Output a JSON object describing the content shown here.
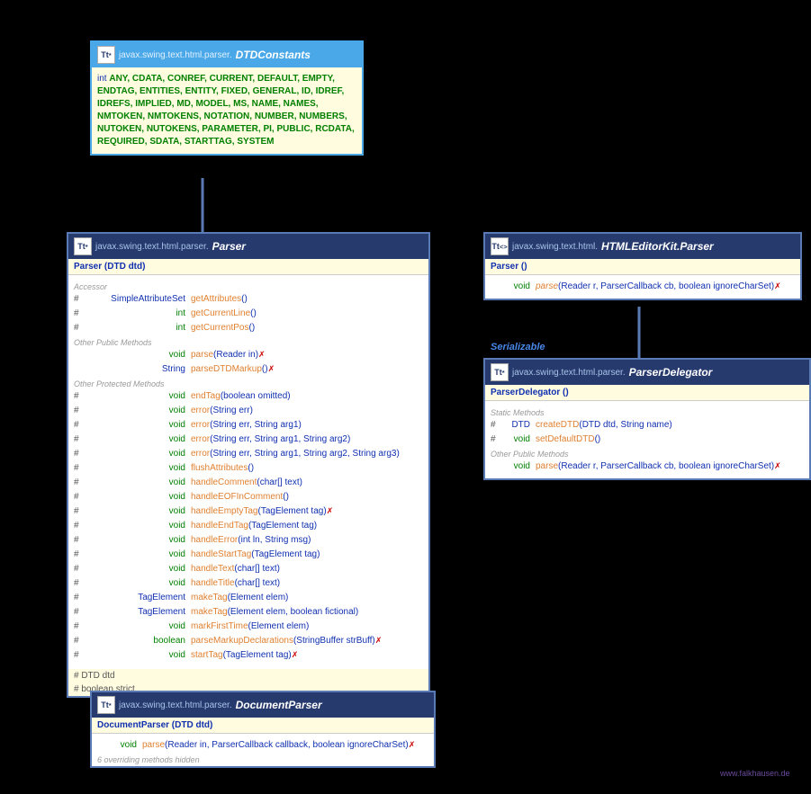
{
  "watermark": "www.falkhausen.de",
  "link_color": "#5a7ab5",
  "dtd": {
    "pkg": "javax.swing.text.html.parser.",
    "name": "DTDConstants",
    "constants_prefix": "int ",
    "constants": "ANY, CDATA, CONREF, CURRENT, DEFAULT, EMPTY, ENDTAG, ENTITIES, ENTITY, FIXED, GENERAL, ID, IDREF, IDREFS, IMPLIED, MD, MODEL, MS, NAME, NAMES, NMTOKEN, NMTOKENS, NOTATION, NUMBER, NUMBERS, NUTOKEN, NUTOKENS, PARAMETER, PI, PUBLIC, RCDATA, REQUIRED, SDATA, STARTTAG, SYSTEM"
  },
  "parser": {
    "pkg": "javax.swing.text.html.parser.",
    "name": "Parser",
    "ctor": "Parser (DTD dtd)",
    "sec1": "Accessor",
    "rows1": [
      {
        "m": "#",
        "t": "SimpleAttributeSet",
        "tc": "r-cls",
        "n": "getAttributes",
        "a": " ()"
      },
      {
        "m": "#",
        "t": "int",
        "tc": "r-prim",
        "n": "getCurrentLine",
        "a": " ()"
      },
      {
        "m": "#",
        "t": "int",
        "tc": "r-prim",
        "n": "getCurrentPos",
        "a": " ()"
      }
    ],
    "sec2": "Other Public Methods",
    "rows2": [
      {
        "m": "",
        "t": "void",
        "tc": "r-prim",
        "n": "parse",
        "a": " (Reader in) ",
        "e": "✗"
      },
      {
        "m": "",
        "t": "String",
        "tc": "r-cls",
        "n": "parseDTDMarkup",
        "a": " () ",
        "e": "✗"
      }
    ],
    "sec3": "Other Protected Methods",
    "rows3": [
      {
        "m": "#",
        "t": "void",
        "tc": "r-prim",
        "n": "endTag",
        "a": " (boolean omitted)"
      },
      {
        "m": "#",
        "t": "void",
        "tc": "r-prim",
        "n": "error",
        "a": " (String err)"
      },
      {
        "m": "#",
        "t": "void",
        "tc": "r-prim",
        "n": "error",
        "a": " (String err, String arg1)"
      },
      {
        "m": "#",
        "t": "void",
        "tc": "r-prim",
        "n": "error",
        "a": " (String err, String arg1, String arg2)"
      },
      {
        "m": "#",
        "t": "void",
        "tc": "r-prim",
        "n": "error",
        "a": " (String err, String arg1, String arg2, String arg3)"
      },
      {
        "m": "#",
        "t": "void",
        "tc": "r-prim",
        "n": "flushAttributes",
        "a": " ()"
      },
      {
        "m": "#",
        "t": "void",
        "tc": "r-prim",
        "n": "handleComment",
        "a": " (char[] text)"
      },
      {
        "m": "#",
        "t": "void",
        "tc": "r-prim",
        "n": "handleEOFInComment",
        "a": " ()"
      },
      {
        "m": "#",
        "t": "void",
        "tc": "r-prim",
        "n": "handleEmptyTag",
        "a": " (TagElement tag) ",
        "e": "✗"
      },
      {
        "m": "#",
        "t": "void",
        "tc": "r-prim",
        "n": "handleEndTag",
        "a": " (TagElement tag)"
      },
      {
        "m": "#",
        "t": "void",
        "tc": "r-prim",
        "n": "handleError",
        "a": " (int ln, String msg)"
      },
      {
        "m": "#",
        "t": "void",
        "tc": "r-prim",
        "n": "handleStartTag",
        "a": " (TagElement tag)"
      },
      {
        "m": "#",
        "t": "void",
        "tc": "r-prim",
        "n": "handleText",
        "a": " (char[] text)"
      },
      {
        "m": "#",
        "t": "void",
        "tc": "r-prim",
        "n": "handleTitle",
        "a": " (char[] text)"
      },
      {
        "m": "#",
        "t": "TagElement",
        "tc": "r-cls",
        "n": "makeTag",
        "a": " (Element elem)"
      },
      {
        "m": "#",
        "t": "TagElement",
        "tc": "r-cls",
        "n": "makeTag",
        "a": " (Element elem, boolean fictional)"
      },
      {
        "m": "#",
        "t": "void",
        "tc": "r-prim",
        "n": "markFirstTime",
        "a": " (Element elem)"
      },
      {
        "m": "#",
        "t": "boolean",
        "tc": "r-prim",
        "n": "parseMarkupDeclarations",
        "a": " (StringBuffer strBuff) ",
        "e": "✗"
      },
      {
        "m": "#",
        "t": "void",
        "tc": "r-prim",
        "n": "startTag",
        "a": " (TagElement tag) ",
        "e": "✗"
      }
    ],
    "fields": [
      "# DTD dtd",
      "# boolean strict"
    ]
  },
  "doc": {
    "pkg": "javax.swing.text.html.parser.",
    "name": "DocumentParser",
    "ctor": "DocumentParser (DTD dtd)",
    "row": {
      "m": "",
      "t": "void",
      "tc": "r-prim",
      "n": "parse",
      "a": " (Reader in, ParserCallback callback, boolean ignoreCharSet) ",
      "e": "✗"
    },
    "hidden": "6 overriding methods hidden"
  },
  "ekit": {
    "pkg": "javax.swing.text.html.",
    "name": "HTMLEditorKit.Parser",
    "ctor": "Parser ()",
    "row": {
      "m": "",
      "t": "void",
      "tc": "r-prim",
      "n": "parse",
      "ni": true,
      "a": " (Reader r, ParserCallback cb, boolean ignoreCharSet) ",
      "e": "✗"
    }
  },
  "iface": "Serializable",
  "del": {
    "pkg": "javax.swing.text.html.parser.",
    "name": "ParserDelegator",
    "ctor": "ParserDelegator ()",
    "sec1": "Static Methods",
    "rows1": [
      {
        "m": "#",
        "t": "DTD",
        "tc": "r-cls",
        "n": "createDTD",
        "a": " (DTD dtd, String name)"
      },
      {
        "m": "#",
        "t": "void",
        "tc": "r-prim",
        "n": "setDefaultDTD",
        "a": " ()"
      }
    ],
    "sec2": "Other Public Methods",
    "rows2": [
      {
        "m": "",
        "t": "void",
        "tc": "r-prim",
        "n": "parse",
        "a": " (Reader r, ParserCallback cb, boolean ignoreCharSet) ",
        "e": "✗"
      }
    ]
  }
}
